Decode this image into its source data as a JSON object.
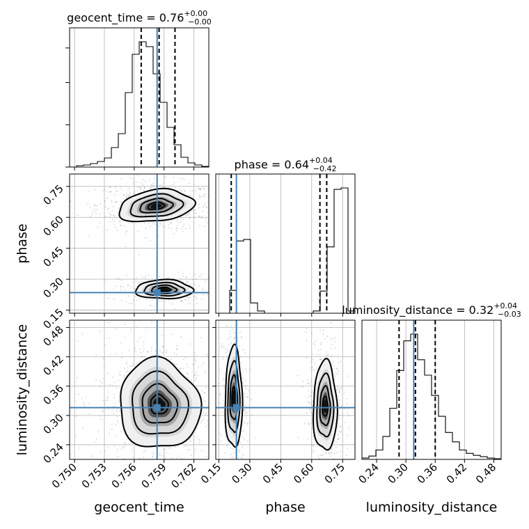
{
  "chart_data": {
    "type": "corner",
    "parameters": [
      {
        "name": "geocent_time",
        "xlabel": "geocent_time",
        "ylabel": "",
        "title": {
          "prefix": "geocent_time = 0.76",
          "sup": "+0.00",
          "sub": "−0.00"
        },
        "range": [
          0.7495,
          0.7635
        ],
        "ticks": [
          "0.750",
          "0.753",
          "0.756",
          "0.759",
          "0.762"
        ],
        "tick_values": [
          0.75,
          0.753,
          0.756,
          0.759,
          0.762
        ],
        "quantiles": [
          0.7567,
          0.7585,
          0.7601
        ],
        "truth": 0.7583,
        "hist_edges_start": 0.7495,
        "hist_bin_width": 0.0007,
        "hist_counts": [
          0,
          2,
          3,
          5,
          8,
          13,
          28,
          48,
          107,
          162,
          180,
          173,
          134,
          93,
          57,
          32,
          14,
          6,
          3,
          1
        ]
      },
      {
        "name": "phase",
        "xlabel": "phase",
        "ylabel": "phase",
        "title": {
          "prefix": "phase = 0.64",
          "sup": "+0.04",
          "sub": "−0.42"
        },
        "range": [
          0.135,
          0.81
        ],
        "ticks": [
          "0.15",
          "0.30",
          "0.45",
          "0.60",
          "0.75"
        ],
        "tick_values": [
          0.15,
          0.3,
          0.45,
          0.6,
          0.75
        ],
        "quantiles": [
          0.21,
          0.64,
          0.673
        ],
        "truth": 0.235,
        "hist_edges_start": 0.135,
        "hist_bin_width": 0.03375,
        "hist_counts": [
          0,
          0,
          31,
          98,
          100,
          14,
          3,
          0,
          0,
          0,
          0,
          0,
          0,
          0,
          3,
          30,
          90,
          168,
          170,
          3
        ]
      },
      {
        "name": "luminosity_distance",
        "xlabel": "luminosity_distance",
        "ylabel": "luminosity_distance",
        "title": {
          "prefix": "luminosity_distance = 0.32",
          "sup": "+0.04",
          "sub": "−0.03"
        },
        "range": [
          0.21,
          0.495
        ],
        "ticks": [
          "0.24",
          "0.30",
          "0.36",
          "0.42",
          "0.48"
        ],
        "tick_values": [
          0.24,
          0.3,
          0.36,
          0.42,
          0.48
        ],
        "quantiles": [
          0.286,
          0.3195,
          0.36
        ],
        "truth": 0.316,
        "hist_edges_start": 0.21,
        "hist_bin_width": 0.01425,
        "hist_counts": [
          2,
          5,
          14,
          34,
          76,
          132,
          176,
          186,
          148,
          125,
          95,
          64,
          40,
          26,
          14,
          9,
          6,
          4,
          2,
          1
        ]
      }
    ],
    "grid": true,
    "truth_color": "#4682b4",
    "hist_color": "#000000",
    "contour_color": "#000000",
    "scatter_color": "#808080"
  }
}
